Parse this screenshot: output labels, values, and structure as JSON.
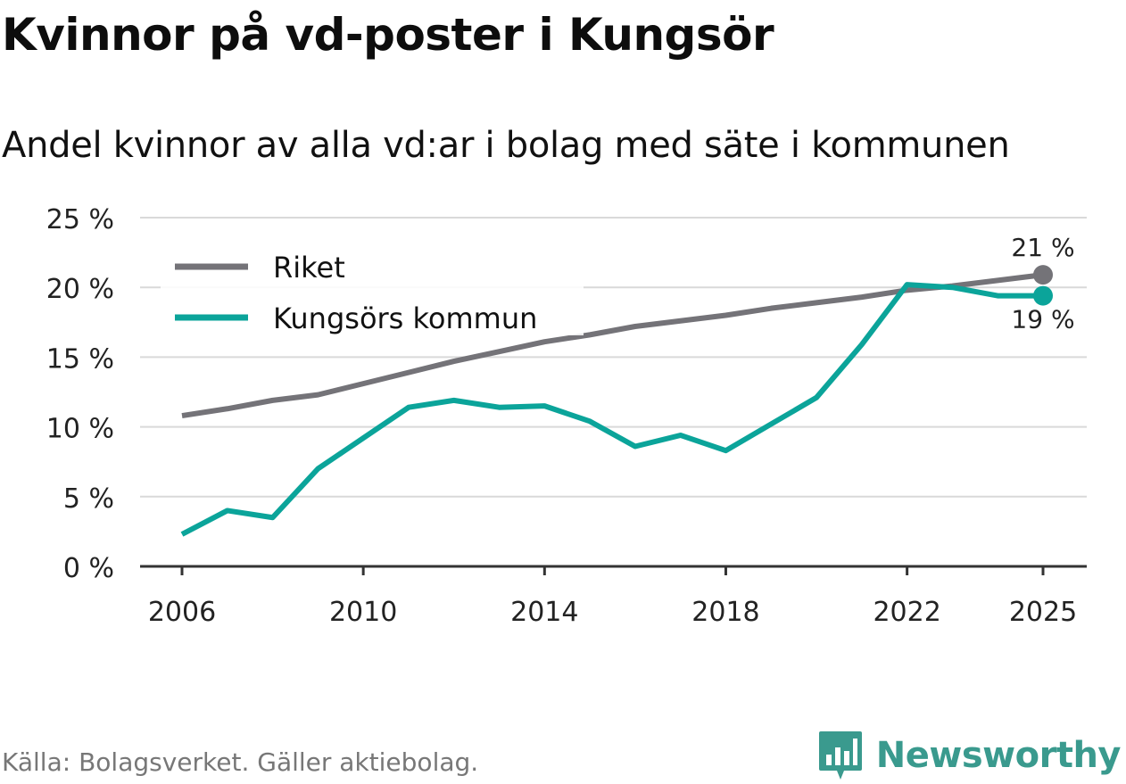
{
  "header": {
    "title": "Kvinnor på vd-poster i Kungsör",
    "subtitle": "Andel kvinnor av alla vd:ar i bolag med säte i kommunen"
  },
  "footer": {
    "source": "Källa: Bolagsverket. Gäller aktiebolag.",
    "brand": "Newsworthy"
  },
  "colors": {
    "riket": "#747378",
    "kommun": "#0ba49a",
    "grid": "#d9d9d9",
    "axis": "#333333",
    "brand": "#3a9a8e"
  },
  "chart_data": {
    "type": "line",
    "title": "Kvinnor på vd-poster i Kungsör",
    "subtitle": "Andel kvinnor av alla vd:ar i bolag med säte i kommunen",
    "xlabel": "",
    "ylabel": "",
    "x": [
      2006,
      2007,
      2008,
      2009,
      2010,
      2011,
      2012,
      2013,
      2014,
      2015,
      2016,
      2017,
      2018,
      2019,
      2020,
      2021,
      2022,
      2023,
      2024,
      2025
    ],
    "xticks": [
      2006,
      2010,
      2014,
      2018,
      2022,
      2025
    ],
    "xtick_labels": [
      "2006",
      "2010",
      "2014",
      "2018",
      "2022",
      "2025"
    ],
    "yticks": [
      0,
      5,
      10,
      15,
      20,
      25
    ],
    "ytick_labels": [
      "0 %",
      "5 %",
      "10 %",
      "15 %",
      "20 %",
      "25 %"
    ],
    "xlim": [
      2006,
      2025
    ],
    "ylim": [
      0,
      25
    ],
    "grid": true,
    "legend_position": "top-left",
    "series": [
      {
        "name": "Riket",
        "color": "#747378",
        "values": [
          10.8,
          11.3,
          11.9,
          12.3,
          13.1,
          13.9,
          14.7,
          15.4,
          16.1,
          16.6,
          17.2,
          17.6,
          18.0,
          18.5,
          18.9,
          19.3,
          19.8,
          20.1,
          20.5,
          20.9
        ],
        "end_label": "21 %"
      },
      {
        "name": "Kungsörs kommun",
        "color": "#0ba49a",
        "values": [
          2.3,
          4.0,
          3.5,
          7.0,
          9.2,
          11.4,
          11.9,
          11.4,
          11.5,
          10.4,
          8.6,
          9.4,
          8.3,
          10.2,
          12.1,
          15.9,
          20.2,
          20.0,
          19.4,
          19.4
        ],
        "end_label": "19 %"
      }
    ]
  }
}
